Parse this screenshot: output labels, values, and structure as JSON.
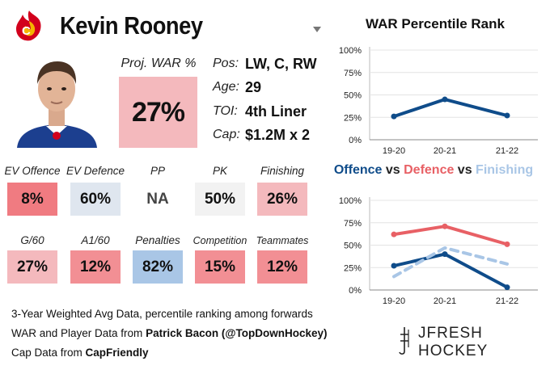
{
  "header": {
    "player_name": "Kevin Rooney",
    "team_logo_icon": "calgary-flames-logo-icon",
    "dropdown_icon": "caret-down-icon"
  },
  "photo": {
    "icon": "player-headshot-icon"
  },
  "proj_war": {
    "label": "Proj. WAR %",
    "value": "27%",
    "color": "#f4b9bd"
  },
  "bio": [
    {
      "label": "Pos:",
      "value": "LW, C, RW"
    },
    {
      "label": "Age:",
      "value": "29"
    },
    {
      "label": "TOI:",
      "value": "4th Liner"
    },
    {
      "label": "Cap:",
      "value": "$1.2M x 2"
    }
  ],
  "stats_row1": [
    {
      "label": "EV Offence",
      "value": "8%",
      "color": "#f07b81"
    },
    {
      "label": "EV Defence",
      "value": "60%",
      "color": "#dfe6ef"
    },
    {
      "label": "PP",
      "value": "NA",
      "color": "#ffffff"
    },
    {
      "label": "PK",
      "value": "50%",
      "color": "#f2f2f2"
    },
    {
      "label": "Finishing",
      "value": "26%",
      "color": "#f4b9bd"
    }
  ],
  "stats_row2": [
    {
      "label": "G/60",
      "value": "27%",
      "color": "#f4b9bd"
    },
    {
      "label": "A1/60",
      "value": "12%",
      "color": "#f28f94"
    },
    {
      "label": "Penalties",
      "value": "82%",
      "color": "#a9c6e6"
    },
    {
      "label": "Competition",
      "value": "15%",
      "color": "#f28f94"
    },
    {
      "label": "Teammates",
      "value": "12%",
      "color": "#f28f94"
    }
  ],
  "footer": {
    "line1": "3-Year Weighted Avg Data, percentile ranking among forwards",
    "line2_prefix": "WAR and Player Data from ",
    "line2_bold": "Patrick Bacon (@TopDownHockey)",
    "line3_prefix": "Cap Data from ",
    "line3_bold": "CapFriendly"
  },
  "brand": {
    "text": "JFRESH HOCKEY",
    "icon": "jfresh-logo-icon"
  },
  "colors": {
    "offence": "#0f4c8a",
    "defence": "#e86065",
    "finishing": "#a9c6e6"
  },
  "chart_data": [
    {
      "type": "line",
      "title": "WAR Percentile Rank",
      "categories": [
        "19-20",
        "20-21",
        "21-22"
      ],
      "yticks": [
        "0%",
        "25%",
        "50%",
        "75%",
        "100%"
      ],
      "ylim": [
        0,
        100
      ],
      "series": [
        {
          "name": "WAR",
          "values": [
            26,
            45,
            27
          ],
          "color": "#0f4c8a",
          "dashed": false
        }
      ]
    },
    {
      "type": "line",
      "title_parts": [
        "Offence",
        " vs ",
        "Defence",
        " vs ",
        "Finishing"
      ],
      "categories": [
        "19-20",
        "20-21",
        "21-22"
      ],
      "yticks": [
        "0%",
        "25%",
        "50%",
        "75%",
        "100%"
      ],
      "ylim": [
        0,
        100
      ],
      "series": [
        {
          "name": "Offence",
          "values": [
            27,
            40,
            3
          ],
          "color": "#0f4c8a",
          "dashed": false
        },
        {
          "name": "Defence",
          "values": [
            62,
            71,
            51
          ],
          "color": "#e86065",
          "dashed": false
        },
        {
          "name": "Finishing",
          "values": [
            15,
            47,
            29
          ],
          "color": "#a9c6e6",
          "dashed": true
        }
      ]
    }
  ]
}
